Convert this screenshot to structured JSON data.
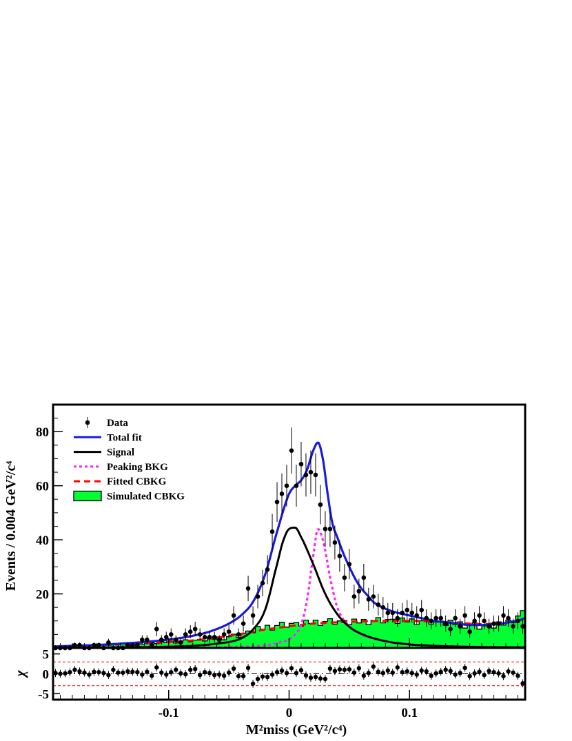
{
  "chart_data": [
    {
      "type": "line",
      "panel": "main",
      "ylabel": "Events / 0.004 GeV²/c⁴",
      "xlim": [
        -0.196,
        0.196
      ],
      "ylim": [
        0,
        90
      ],
      "yticks": [
        20,
        40,
        60,
        80
      ],
      "ytick_labels": [
        "20",
        "40",
        "60",
        "80"
      ],
      "legend_position": "top-left",
      "legend": [
        {
          "label": "Data",
          "style": "marker",
          "color": "#000000"
        },
        {
          "label": "Total fit",
          "style": "solid",
          "color": "#1a1adc"
        },
        {
          "label": "Signal",
          "style": "solid",
          "color": "#000000"
        },
        {
          "label": "Peaking BKG",
          "style": "dotted",
          "color": "#ff22ff"
        },
        {
          "label": "Fitted CBKG",
          "style": "dashed",
          "color": "#ff0000"
        },
        {
          "label": "Simulated CBKG",
          "style": "fill",
          "color": "#00ff33"
        }
      ],
      "series": [
        {
          "name": "Data",
          "x": [
            -0.194,
            -0.19,
            -0.186,
            -0.182,
            -0.178,
            -0.174,
            -0.17,
            -0.166,
            -0.162,
            -0.158,
            -0.154,
            -0.15,
            -0.146,
            -0.142,
            -0.138,
            -0.134,
            -0.13,
            -0.126,
            -0.122,
            -0.118,
            -0.114,
            -0.11,
            -0.106,
            -0.102,
            -0.098,
            -0.094,
            -0.09,
            -0.086,
            -0.082,
            -0.078,
            -0.074,
            -0.07,
            -0.066,
            -0.062,
            -0.058,
            -0.054,
            -0.05,
            -0.046,
            -0.042,
            -0.038,
            -0.034,
            -0.03,
            -0.026,
            -0.022,
            -0.018,
            -0.014,
            -0.01,
            -0.006,
            -0.002,
            0.002,
            0.006,
            0.01,
            0.014,
            0.018,
            0.022,
            0.026,
            0.03,
            0.034,
            0.038,
            0.042,
            0.046,
            0.05,
            0.054,
            0.058,
            0.062,
            0.066,
            0.07,
            0.074,
            0.078,
            0.082,
            0.086,
            0.09,
            0.094,
            0.098,
            0.102,
            0.106,
            0.11,
            0.114,
            0.118,
            0.122,
            0.126,
            0.13,
            0.134,
            0.138,
            0.142,
            0.146,
            0.15,
            0.154,
            0.158,
            0.162,
            0.166,
            0.17,
            0.174,
            0.178,
            0.182,
            0.186,
            0.19,
            0.194
          ],
          "y": [
            0,
            0,
            0,
            0,
            1,
            1,
            0,
            0,
            1,
            1,
            0,
            2,
            0,
            0,
            0,
            1,
            1,
            1,
            3,
            3,
            1,
            7,
            3,
            4,
            5,
            3,
            2,
            5,
            6,
            7,
            5,
            4,
            4,
            4,
            3,
            5,
            6,
            12,
            5,
            9,
            22,
            12,
            19,
            24,
            29,
            43,
            54,
            57,
            60,
            73,
            60,
            68,
            64,
            65,
            64,
            53,
            44,
            44,
            39,
            34,
            26,
            31,
            19,
            21,
            26,
            18,
            19,
            16,
            15,
            13,
            13,
            11,
            13,
            14,
            13,
            12,
            14,
            11,
            10,
            11,
            11,
            9,
            7,
            11,
            8,
            12,
            6,
            10,
            12,
            10,
            8,
            9,
            9,
            12,
            11,
            8,
            10,
            8
          ]
        },
        {
          "name": "Total fit",
          "x": [
            -0.196,
            -0.18,
            -0.16,
            -0.14,
            -0.12,
            -0.1,
            -0.09,
            -0.08,
            -0.07,
            -0.06,
            -0.05,
            -0.04,
            -0.03,
            -0.02,
            -0.01,
            0,
            0.005,
            0.01,
            0.015,
            0.02,
            0.024,
            0.028,
            0.032,
            0.036,
            0.04,
            0.045,
            0.05,
            0.055,
            0.06,
            0.065,
            0.07,
            0.08,
            0.09,
            0.1,
            0.11,
            0.12,
            0.13,
            0.14,
            0.15,
            0.16,
            0.17,
            0.18,
            0.19,
            0.196
          ],
          "y": [
            0.5,
            0.8,
            1.1,
            1.6,
            2.2,
            3.1,
            3.7,
            4.5,
            5.5,
            7,
            9,
            12,
            17,
            27,
            43,
            57,
            60,
            62,
            66,
            73,
            76,
            70,
            57,
            46,
            41,
            35,
            30,
            25.5,
            22,
            19.5,
            17,
            14.5,
            13,
            12,
            11,
            10,
            9.5,
            9,
            8.5,
            8.5,
            8.8,
            9.3,
            10.2,
            11
          ]
        },
        {
          "name": "Signal",
          "x": [
            -0.196,
            -0.16,
            -0.12,
            -0.08,
            -0.06,
            -0.04,
            -0.03,
            -0.02,
            -0.01,
            -0.005,
            0,
            0.005,
            0.01,
            0.02,
            0.03,
            0.04,
            0.05,
            0.06,
            0.08,
            0.1,
            0.12,
            0.15,
            0.196
          ],
          "y": [
            0,
            0.1,
            0.3,
            0.8,
            1.6,
            3.5,
            6.8,
            14,
            31,
            39.5,
            44,
            44.5,
            41,
            31,
            20,
            12.5,
            7.8,
            5.2,
            2.5,
            1.3,
            0.8,
            0.4,
            0.2
          ]
        },
        {
          "name": "Peaking BKG",
          "x": [
            -0.196,
            -0.1,
            -0.05,
            -0.02,
            -0.01,
            0,
            0.005,
            0.01,
            0.015,
            0.02,
            0.024,
            0.028,
            0.035,
            0.04,
            0.05,
            0.06,
            0.08,
            0.1,
            0.15,
            0.196
          ],
          "y": [
            0,
            0,
            0.3,
            1,
            1.8,
            3.2,
            5,
            8.5,
            18,
            34,
            44,
            40,
            24,
            15,
            8,
            5,
            2.5,
            1.3,
            0.5,
            0.2
          ]
        },
        {
          "name": "Fitted CBKG",
          "x": [
            -0.196,
            -0.16,
            -0.12,
            -0.08,
            -0.06,
            -0.04,
            -0.02,
            0,
            0.02,
            0.04,
            0.06,
            0.08,
            0.1,
            0.12,
            0.14,
            0.16,
            0.18,
            0.196
          ],
          "y": [
            0.5,
            1,
            1.7,
            2.8,
            3.8,
            5.2,
            6.8,
            8,
            9,
            9.5,
            9.8,
            10,
            10,
            9.8,
            9.3,
            8.8,
            9.5,
            10.5
          ]
        },
        {
          "name": "Simulated CBKG",
          "x": [
            -0.196,
            -0.16,
            -0.12,
            -0.1,
            -0.08,
            -0.06,
            -0.04,
            -0.03,
            -0.02,
            -0.01,
            0,
            0.01,
            0.02,
            0.03,
            0.04,
            0.05,
            0.06,
            0.08,
            0.1,
            0.12,
            0.14,
            0.16,
            0.18,
            0.196
          ],
          "y": [
            0.5,
            1,
            1.6,
            2.2,
            2.6,
            3.5,
            4.5,
            6.5,
            7.5,
            8,
            8.5,
            9,
            9.5,
            9.5,
            9.5,
            9.5,
            9.7,
            10,
            10,
            9.5,
            9,
            7.5,
            9,
            13
          ]
        }
      ]
    },
    {
      "type": "scatter",
      "panel": "pull",
      "ylabel": "χ",
      "xlabel": "M²miss (GeV²/c⁴)",
      "xlim": [
        -0.196,
        0.196
      ],
      "ylim": [
        -6.5,
        6.5
      ],
      "yticks": [
        -5,
        0,
        5
      ],
      "ytick_labels": [
        "-5",
        "0",
        "5"
      ],
      "xticks": [
        -0.1,
        0,
        0.1
      ],
      "xtick_labels": [
        "-0.1",
        "0",
        "0.1"
      ],
      "reference_lines": [
        -3,
        0,
        3
      ],
      "series": [
        {
          "name": "Pull",
          "x": [
            -0.194,
            -0.19,
            -0.186,
            -0.182,
            -0.178,
            -0.174,
            -0.17,
            -0.166,
            -0.162,
            -0.158,
            -0.154,
            -0.15,
            -0.146,
            -0.142,
            -0.138,
            -0.134,
            -0.13,
            -0.126,
            -0.122,
            -0.118,
            -0.114,
            -0.11,
            -0.106,
            -0.102,
            -0.098,
            -0.094,
            -0.09,
            -0.086,
            -0.082,
            -0.078,
            -0.074,
            -0.07,
            -0.066,
            -0.062,
            -0.058,
            -0.054,
            -0.05,
            -0.046,
            -0.042,
            -0.038,
            -0.034,
            -0.03,
            -0.026,
            -0.022,
            -0.018,
            -0.014,
            -0.01,
            -0.006,
            -0.002,
            0.002,
            0.006,
            0.01,
            0.014,
            0.018,
            0.022,
            0.026,
            0.03,
            0.034,
            0.038,
            0.042,
            0.046,
            0.05,
            0.054,
            0.058,
            0.062,
            0.066,
            0.07,
            0.074,
            0.078,
            0.082,
            0.086,
            0.09,
            0.094,
            0.098,
            0.102,
            0.106,
            0.11,
            0.114,
            0.118,
            0.122,
            0.126,
            0.13,
            0.134,
            0.138,
            0.142,
            0.146,
            0.15,
            0.154,
            0.158,
            0.162,
            0.166,
            0.17,
            0.174,
            0.178,
            0.182,
            0.186,
            0.19,
            0.194
          ],
          "y": [
            0.2,
            0,
            0.1,
            0.4,
            1,
            0.6,
            0.3,
            -0.2,
            0.5,
            0.4,
            0.2,
            -0.3,
            1,
            0.3,
            0.3,
            0.6,
            0.5,
            0.4,
            -0.2,
            0.5,
            -0.5,
            1.6,
            0.3,
            -0.2,
            0.4,
            1,
            0.1,
            -0.1,
            1,
            1.2,
            -0.3,
            0.4,
            0.2,
            -0.3,
            -0.2,
            -0.5,
            0.3,
            1.3,
            -0.6,
            -0.6,
            1.5,
            -2.5,
            -1.3,
            -0.7,
            -0.8,
            -0.2,
            0.4,
            0.8,
            0.2,
            1.4,
            0.2,
            0.9,
            -0.4,
            -1,
            -0.8,
            -1.2,
            -1.3,
            1.3,
            0.7,
            1.1,
            1,
            1.1,
            0.3,
            1.4,
            -0.5,
            0.2,
            1.8,
            0.5,
            0.2,
            0.8,
            0.3,
            1.6,
            0.4,
            0.6,
            0.2,
            -0.2,
            0.8,
            0.6,
            -0.5,
            0.1,
            0.5,
            1,
            0.7,
            -0.2,
            0.2,
            1.5,
            -0.6,
            0.1,
            0.5,
            -0.3,
            0.7,
            0.4,
            0.1,
            -0.6,
            0.6,
            0.3,
            -0.5,
            -2.4
          ]
        }
      ]
    }
  ]
}
